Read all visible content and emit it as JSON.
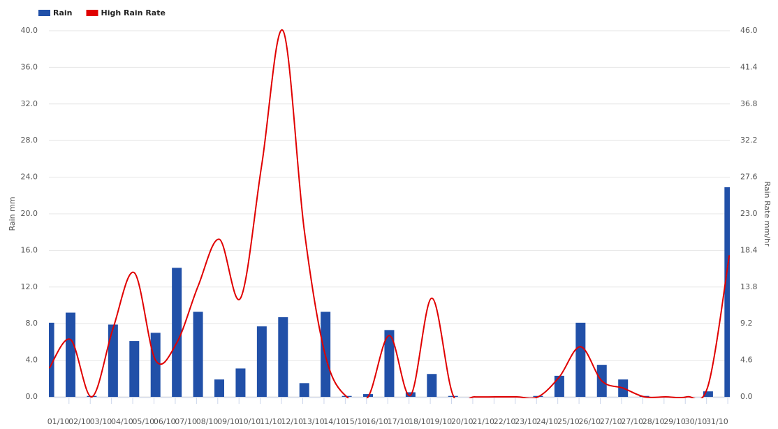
{
  "chart_data": {
    "type": "bar-line",
    "categories": [
      "01/10",
      "02/10",
      "03/10",
      "04/10",
      "05/10",
      "06/10",
      "07/10",
      "08/10",
      "09/10",
      "10/10",
      "11/10",
      "12/10",
      "13/10",
      "14/10",
      "15/10",
      "16/10",
      "17/10",
      "18/10",
      "19/10",
      "20/10",
      "21/10",
      "22/10",
      "23/10",
      "24/10",
      "25/10",
      "26/10",
      "27/10",
      "27/10",
      "28/10",
      "29/10",
      "30/10",
      "31/10",
      null
    ],
    "series": [
      {
        "name": "Rain",
        "color": "#2150a8",
        "type": "bar",
        "values": [
          8.1,
          9.2,
          0.1,
          7.9,
          6.1,
          7.0,
          14.1,
          9.3,
          1.9,
          3.1,
          7.7,
          8.7,
          1.5,
          9.3,
          0.1,
          0.3,
          7.3,
          0.5,
          2.5,
          0.1,
          0,
          0,
          0,
          0.1,
          2.3,
          8.1,
          3.5,
          1.9,
          0.1,
          0,
          0,
          0.6,
          22.9
        ]
      },
      {
        "name": "High Rain Rate",
        "color": "#e00000",
        "type": "line",
        "axis": "y2",
        "values": [
          3.6,
          7.2,
          0,
          8.6,
          15.6,
          4.6,
          6.8,
          13.9,
          19.8,
          12.4,
          29.2,
          46.0,
          20.9,
          5.1,
          0,
          0,
          7.7,
          0.2,
          12.4,
          0.2,
          0,
          0,
          0,
          0,
          2.5,
          6.3,
          2.0,
          1.1,
          0,
          0,
          0,
          1.4,
          17.8
        ]
      }
    ],
    "ylabel": "Rain mm",
    "y2label": "Rain Rate mm/hr",
    "ylim": [
      0,
      40
    ],
    "yticks": [
      {
        "value": 0,
        "label": "0.0"
      },
      {
        "value": 4,
        "label": "4.0"
      },
      {
        "value": 8,
        "label": "8.0"
      },
      {
        "value": 12,
        "label": "12.0"
      },
      {
        "value": 16,
        "label": "16.0"
      },
      {
        "value": 20,
        "label": "20.0"
      },
      {
        "value": 24,
        "label": "24.0"
      },
      {
        "value": 28,
        "label": "28.0"
      },
      {
        "value": 32,
        "label": "32.0"
      },
      {
        "value": 36,
        "label": "36.0"
      },
      {
        "value": 40,
        "label": "40.0"
      }
    ],
    "y2lim": [
      0,
      46
    ],
    "y2ticks": [
      {
        "value": 0,
        "label": "0.0"
      },
      4.6,
      9.2,
      13.8,
      18.4,
      {
        "value": 23,
        "label": "23.0"
      },
      27.6,
      32.2,
      36.8,
      41.4,
      {
        "value": 46,
        "label": "46.0"
      }
    ],
    "grid": true,
    "legend": "top-left"
  }
}
